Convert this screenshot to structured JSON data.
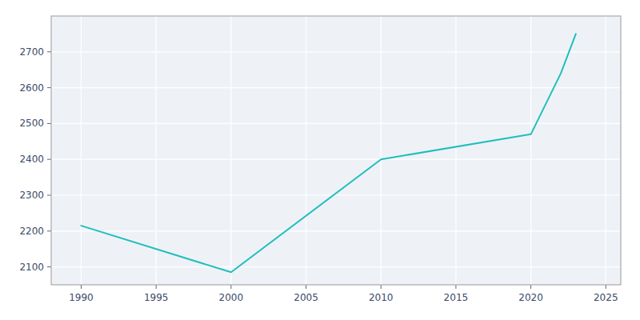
{
  "chart_data": {
    "type": "line",
    "x": [
      1990,
      2000,
      2010,
      2020,
      2022,
      2023
    ],
    "values": [
      2215,
      2085,
      2400,
      2470,
      2640,
      2750
    ],
    "color": "#20BEBE",
    "xlim": [
      1988,
      2026
    ],
    "ylim": [
      2050,
      2800
    ],
    "xticks": [
      1990,
      1995,
      2000,
      2005,
      2010,
      2015,
      2020,
      2025
    ],
    "yticks": [
      2100,
      2200,
      2300,
      2400,
      2500,
      2600,
      2700
    ],
    "grid": true
  }
}
